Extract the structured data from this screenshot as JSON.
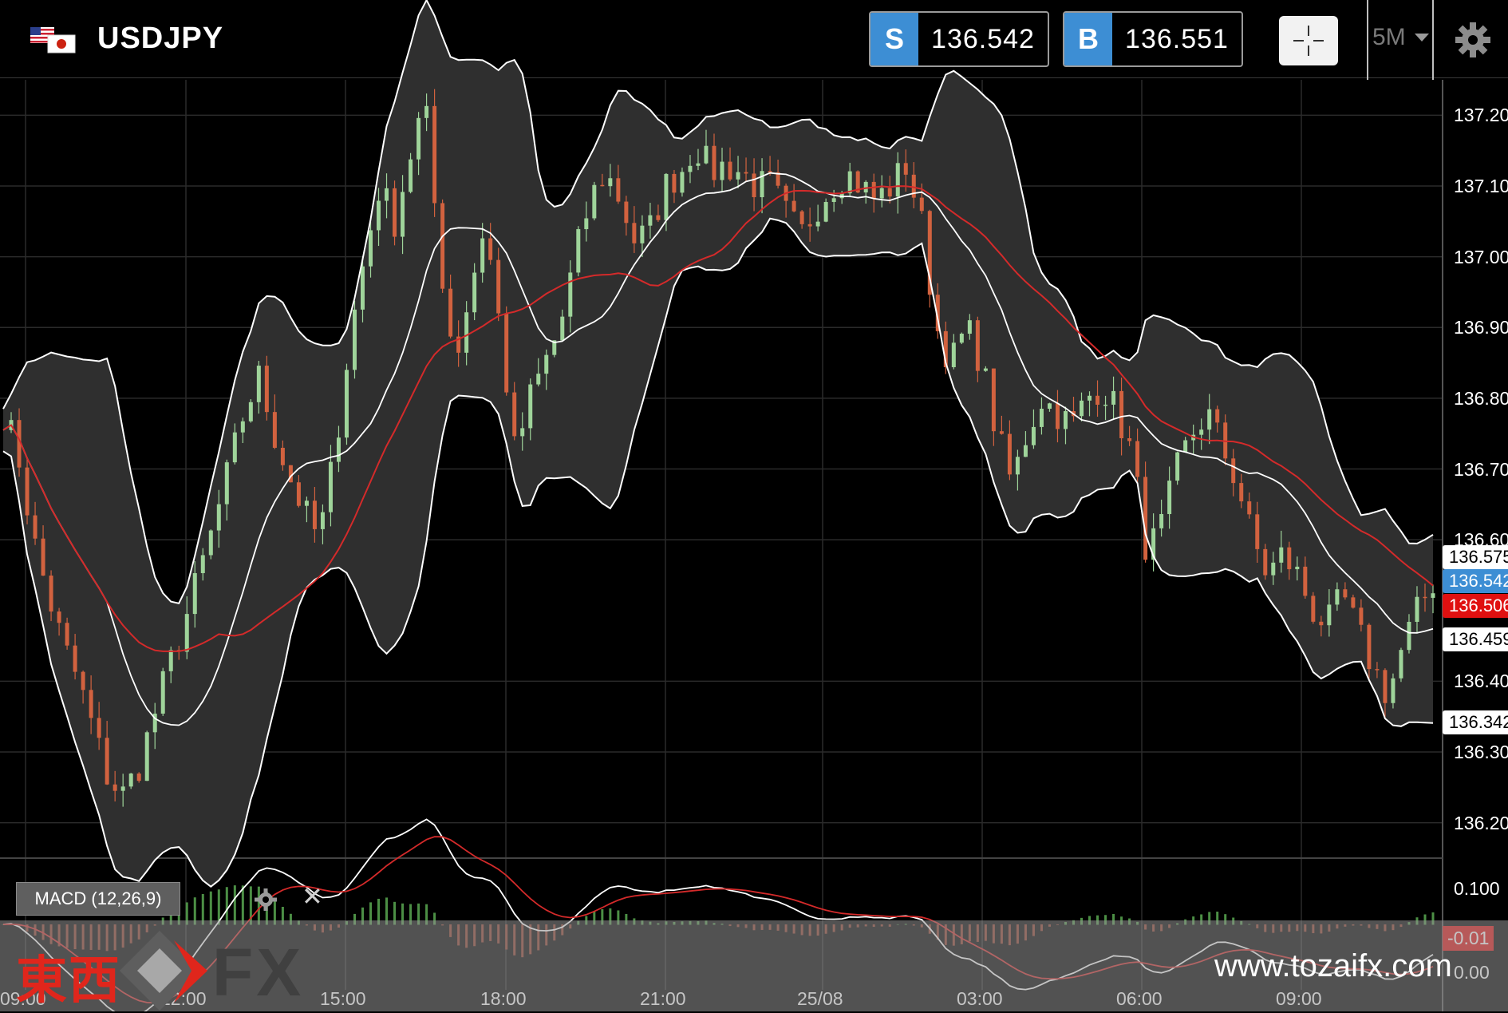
{
  "header": {
    "symbol": "USDJPY",
    "sell": {
      "tag": "S",
      "price": "136.542"
    },
    "buy": {
      "tag": "B",
      "price": "136.551"
    },
    "timeframe": "5M",
    "icons": [
      "flag-icon",
      "crosshair-icon",
      "chevron-down-icon",
      "gear-icon"
    ]
  },
  "chart_data": {
    "type": "candlestick",
    "indicators": [
      "Bollinger Bands",
      "Moving Average (red)",
      "MACD (12,26,9)"
    ],
    "y_ticks": [
      "137.200",
      "137.100",
      "137.000",
      "136.900",
      "136.800",
      "136.700",
      "136.600",
      "136.400",
      "136.300",
      "136.200"
    ],
    "x_ticks": [
      "09:00",
      "12:00",
      "15:00",
      "18:00",
      "21:00",
      "25/08",
      "03:00",
      "06:00",
      "09:00"
    ],
    "ylim": [
      136.15,
      137.25
    ],
    "price_tags": [
      {
        "value": "136.575",
        "kind": "bollinger-upper"
      },
      {
        "value": "136.542",
        "kind": "current"
      },
      {
        "value": "136.506",
        "kind": "moving-average"
      },
      {
        "value": "136.459",
        "kind": "bollinger-mid"
      },
      {
        "value": "136.342",
        "kind": "bollinger-lower"
      }
    ],
    "close_path": [
      136.78,
      136.72,
      136.6,
      136.52,
      136.45,
      136.4,
      136.33,
      136.26,
      136.24,
      136.28,
      136.35,
      136.42,
      136.48,
      136.55,
      136.62,
      136.7,
      136.78,
      136.83,
      136.75,
      136.69,
      136.64,
      136.6,
      136.72,
      136.88,
      137.0,
      137.1,
      137.05,
      137.14,
      137.22,
      137.0,
      136.85,
      136.95,
      137.05,
      136.9,
      136.72,
      136.8,
      136.85,
      136.9,
      137.0,
      137.08,
      137.12,
      137.08,
      137.02,
      137.04,
      137.1,
      137.12,
      137.16,
      137.12,
      137.13,
      137.12,
      137.1,
      137.1,
      137.06,
      137.03,
      137.07,
      137.1,
      137.12,
      137.1,
      137.08,
      137.1,
      137.13,
      137.05,
      136.9,
      136.85,
      136.9,
      136.85,
      136.75,
      136.68,
      136.75,
      136.8,
      136.78,
      136.76,
      136.8,
      136.82,
      136.78,
      136.72,
      136.58,
      136.62,
      136.7,
      136.75,
      136.78,
      136.73,
      136.68,
      136.6,
      136.55,
      136.58,
      136.55,
      136.5,
      136.48,
      136.52,
      136.47,
      136.42,
      136.38,
      136.45,
      136.5,
      136.54
    ],
    "macd": {
      "yticks": [
        "0.100",
        "-0.01",
        "0.00"
      ],
      "label": "MACD (12,26,9)"
    }
  },
  "macd_panel": {
    "label": "MACD (12,26,9)"
  },
  "watermark": {
    "cjk": "東西",
    "fx": "FX",
    "url": "www.tozaifx.com"
  },
  "colors": {
    "accent": "#3d8ed4",
    "ma": "#d42a2a",
    "bull": "#9fd49a",
    "bear": "#d2623f",
    "band_fill": "#2f2f2f"
  }
}
